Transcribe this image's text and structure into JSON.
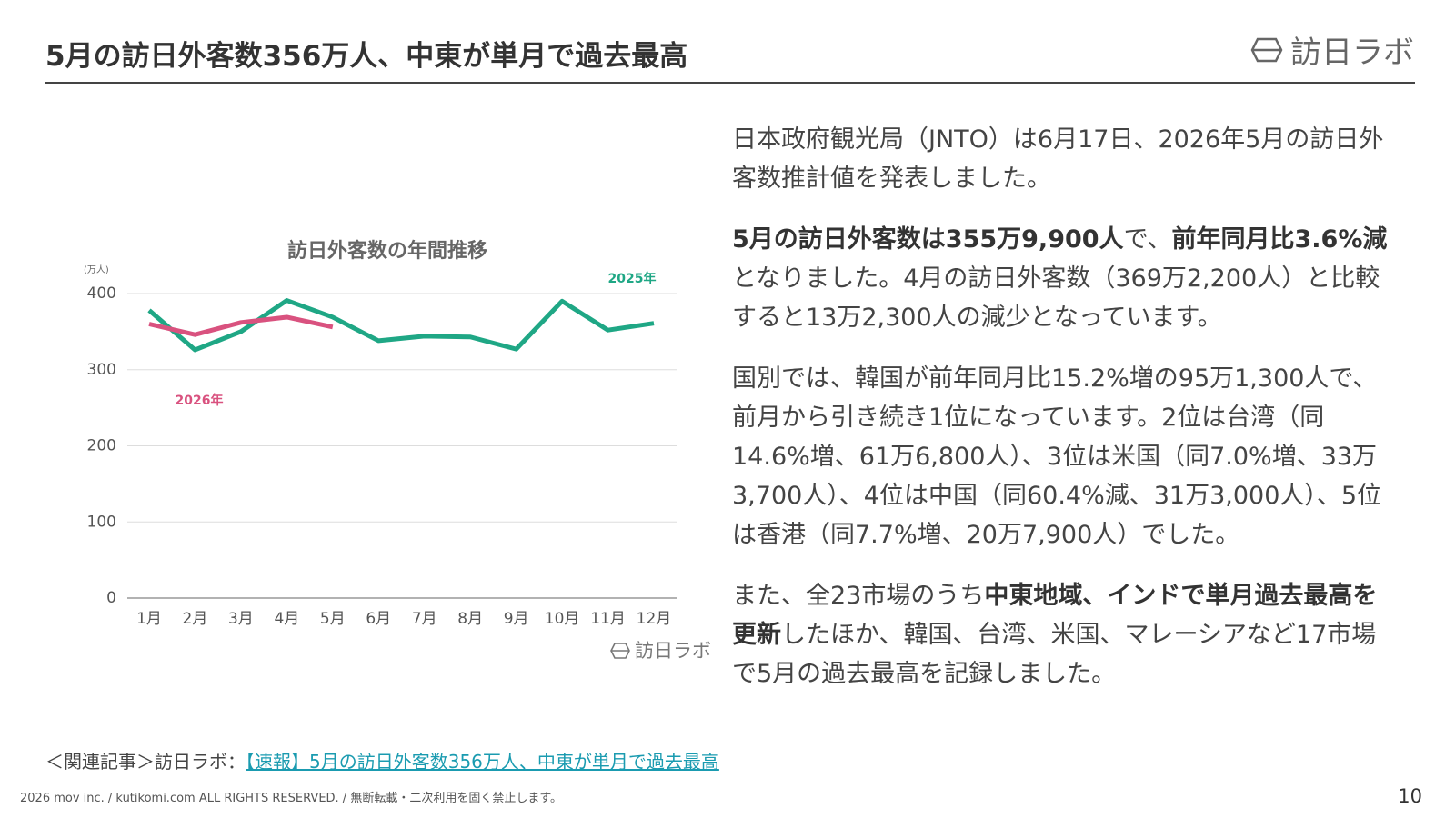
{
  "header": {
    "title": "5月の訪日外客数356万人、中東が単月で過去最高",
    "logo": "訪日ラボ"
  },
  "chart_data": {
    "type": "line",
    "title": "訪日外客数の年間推移",
    "unit": "(万人)",
    "categories": [
      "1月",
      "2月",
      "3月",
      "4月",
      "5月",
      "6月",
      "7月",
      "8月",
      "9月",
      "10月",
      "11月",
      "12月"
    ],
    "series": [
      {
        "name": "2025年",
        "color": "#1fa785",
        "values": [
          378,
          326,
          350,
          391,
          369,
          338,
          344,
          343,
          327,
          390,
          352,
          361
        ]
      },
      {
        "name": "2026年",
        "color": "#d9527f",
        "values": [
          360,
          346,
          362,
          369,
          356,
          null,
          null,
          null,
          null,
          null,
          null,
          null
        ]
      }
    ],
    "ylim": [
      0,
      400
    ],
    "yticks": [
      0,
      100,
      200,
      300,
      400
    ],
    "grid": true,
    "source": "訪日ラボ"
  },
  "paragraphs": [
    [
      {
        "text": "日本政府観光局（JNTO）は6月17日、2026年5月の訪日外客数推計値を発表しました。"
      }
    ],
    [
      {
        "text": "5月の訪日外客数は355万9,900人",
        "bold": true
      },
      {
        "text": "で、"
      },
      {
        "text": "前年同月比3.6%減",
        "bold": true
      },
      {
        "text": "となりました。4月の訪日外客数（369万2,200人）と比較すると13万2,300人の減少となっています。"
      }
    ],
    [
      {
        "text": "国別では、韓国が前年同月比15.2%増の95万1,300人で、前月から引き続き1位になっています。2位は台湾（同14.6%増、61万6,800人）、3位は米国（同7.0%増、33万3,700人）、4位は中国（同60.4%減、31万3,000人）、5位は香港（同7.7%増、20万7,900人）でした。"
      }
    ],
    [
      {
        "text": "また、全23市場のうち"
      },
      {
        "text": "中東地域、インドで単月過去最高を更新",
        "bold": true
      },
      {
        "text": "したほか、韓国、台湾、米国、マレーシアなど17市場で5月の過去最高を記録しました。"
      }
    ]
  ],
  "related": {
    "prefix": "＜関連記事＞訪日ラボ：",
    "link": "【速報】5月の訪日外客数356万人、中東が単月で過去最高"
  },
  "footer": {
    "copyright": "2026 mov inc. / kutikomi.com ALL RIGHTS RESERVED. / 無断転載・二次利用を固く禁止します。",
    "page": "10"
  }
}
